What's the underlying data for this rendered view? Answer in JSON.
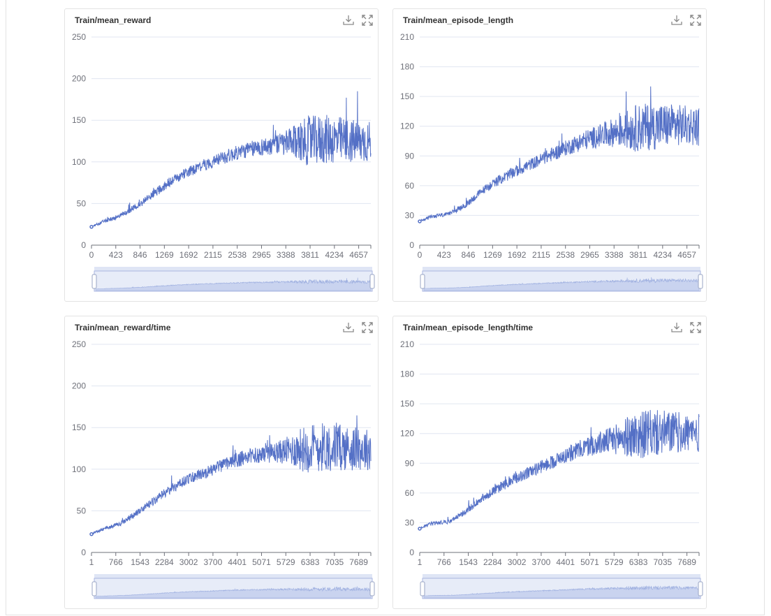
{
  "theme": {
    "line_color": "#5470c6",
    "grid_color": "#e0e6f1",
    "axis_color": "#6e7079",
    "slider_fill": "#e7ecf8",
    "slider_border": "#aab6e0"
  },
  "toolbar": {
    "download_icon": "download-icon",
    "fullscreen_icon": "fullscreen-icon"
  },
  "charts": [
    {
      "title": "Train/mean_reward"
    },
    {
      "title": "Train/mean_episode_length"
    },
    {
      "title": "Train/mean_reward/time"
    },
    {
      "title": "Train/mean_episode_length/time"
    }
  ],
  "chart_data": [
    {
      "type": "line",
      "title": "Train/mean_reward",
      "x_ticks": [
        "0",
        "423",
        "846",
        "1269",
        "1692",
        "2115",
        "2538",
        "2965",
        "3388",
        "3811",
        "4234",
        "4657"
      ],
      "x_range": [
        0,
        4900
      ],
      "ylim": [
        0,
        250
      ],
      "y_ticks": [
        "0",
        "50",
        "100",
        "150",
        "200",
        "250"
      ],
      "grid": true,
      "series": [
        {
          "x": [
            0,
            200,
            500,
            800,
            1100,
            1400,
            1700,
            2000,
            2300,
            2600,
            2900,
            3200,
            3500,
            3800,
            4100,
            4400,
            4700,
            4900
          ],
          "values": [
            22,
            28,
            35,
            47,
            62,
            77,
            88,
            96,
            105,
            112,
            117,
            120,
            123,
            125,
            127,
            126,
            124,
            124
          ],
          "noise": [
            1,
            2,
            3,
            4,
            5,
            6,
            6,
            7,
            8,
            9,
            10,
            12,
            18,
            30,
            30,
            28,
            26,
            25
          ]
        }
      ]
    },
    {
      "type": "line",
      "title": "Train/mean_episode_length",
      "x_ticks": [
        "0",
        "423",
        "846",
        "1269",
        "1692",
        "2115",
        "2538",
        "2965",
        "3388",
        "3811",
        "4234",
        "4657"
      ],
      "x_range": [
        0,
        4900
      ],
      "ylim": [
        0,
        210
      ],
      "y_ticks": [
        "0",
        "30",
        "60",
        "90",
        "120",
        "150",
        "180",
        "210"
      ],
      "grid": true,
      "series": [
        {
          "x": [
            0,
            200,
            500,
            800,
            1100,
            1400,
            1700,
            2000,
            2300,
            2600,
            2900,
            3200,
            3500,
            3800,
            4100,
            4400,
            4700,
            4900
          ],
          "values": [
            24,
            29,
            31,
            40,
            55,
            66,
            75,
            83,
            91,
            99,
            106,
            111,
            115,
            118,
            120,
            121,
            121,
            120
          ],
          "noise": [
            1,
            2,
            2,
            3,
            4,
            5,
            6,
            6,
            7,
            8,
            10,
            12,
            16,
            24,
            24,
            22,
            20,
            20
          ]
        }
      ]
    },
    {
      "type": "line",
      "title": "Train/mean_reward/time",
      "x_ticks": [
        "1",
        "766",
        "1543",
        "2284",
        "3002",
        "3700",
        "4401",
        "5071",
        "5729",
        "6383",
        "7035",
        "7689"
      ],
      "x_range": [
        1,
        8700
      ],
      "ylim": [
        0,
        250
      ],
      "y_ticks": [
        "0",
        "50",
        "100",
        "150",
        "200",
        "250"
      ],
      "grid": true,
      "series": [
        {
          "x": [
            1,
            350,
            900,
            1400,
            1950,
            2500,
            3000,
            3550,
            4100,
            4600,
            5150,
            5700,
            6200,
            6700,
            7250,
            7800,
            8300,
            8700
          ],
          "values": [
            22,
            28,
            35,
            47,
            62,
            77,
            88,
            96,
            105,
            112,
            117,
            120,
            123,
            125,
            127,
            126,
            124,
            124
          ],
          "noise": [
            1,
            2,
            3,
            4,
            5,
            6,
            6,
            7,
            8,
            9,
            10,
            12,
            18,
            30,
            30,
            28,
            26,
            25
          ]
        }
      ]
    },
    {
      "type": "line",
      "title": "Train/mean_episode_length/time",
      "x_ticks": [
        "1",
        "766",
        "1543",
        "2284",
        "3002",
        "3700",
        "4401",
        "5071",
        "5729",
        "6383",
        "7035",
        "7689"
      ],
      "x_range": [
        1,
        8700
      ],
      "ylim": [
        0,
        210
      ],
      "y_ticks": [
        "0",
        "30",
        "60",
        "90",
        "120",
        "150",
        "180",
        "210"
      ],
      "grid": true,
      "series": [
        {
          "x": [
            1,
            350,
            900,
            1400,
            1950,
            2500,
            3000,
            3550,
            4100,
            4600,
            5150,
            5700,
            6200,
            6700,
            7250,
            7800,
            8300,
            8700
          ],
          "values": [
            24,
            29,
            31,
            40,
            55,
            66,
            75,
            83,
            91,
            99,
            106,
            111,
            115,
            118,
            120,
            121,
            121,
            120
          ],
          "noise": [
            1,
            2,
            2,
            3,
            4,
            5,
            6,
            6,
            7,
            8,
            10,
            12,
            16,
            24,
            24,
            22,
            20,
            20
          ]
        }
      ]
    }
  ]
}
